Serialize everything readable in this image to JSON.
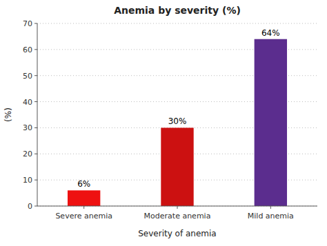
{
  "chart_data": {
    "type": "bar",
    "title": "Anemia by severity (%)",
    "xlabel": "Severity of anemia",
    "ylabel": "(%)",
    "categories": [
      "Severe anemia",
      "Moderate anemia",
      "Mild anemia"
    ],
    "values": [
      6,
      30,
      64
    ],
    "value_labels": [
      "6%",
      "30%",
      "64%"
    ],
    "data_labels": true,
    "colors": [
      "#ee1111",
      "#cc1111",
      "#5b2d8e"
    ],
    "ylim": [
      0,
      70
    ],
    "yticks": [
      0,
      10,
      20,
      30,
      40,
      50,
      60,
      70
    ],
    "grid": true
  }
}
